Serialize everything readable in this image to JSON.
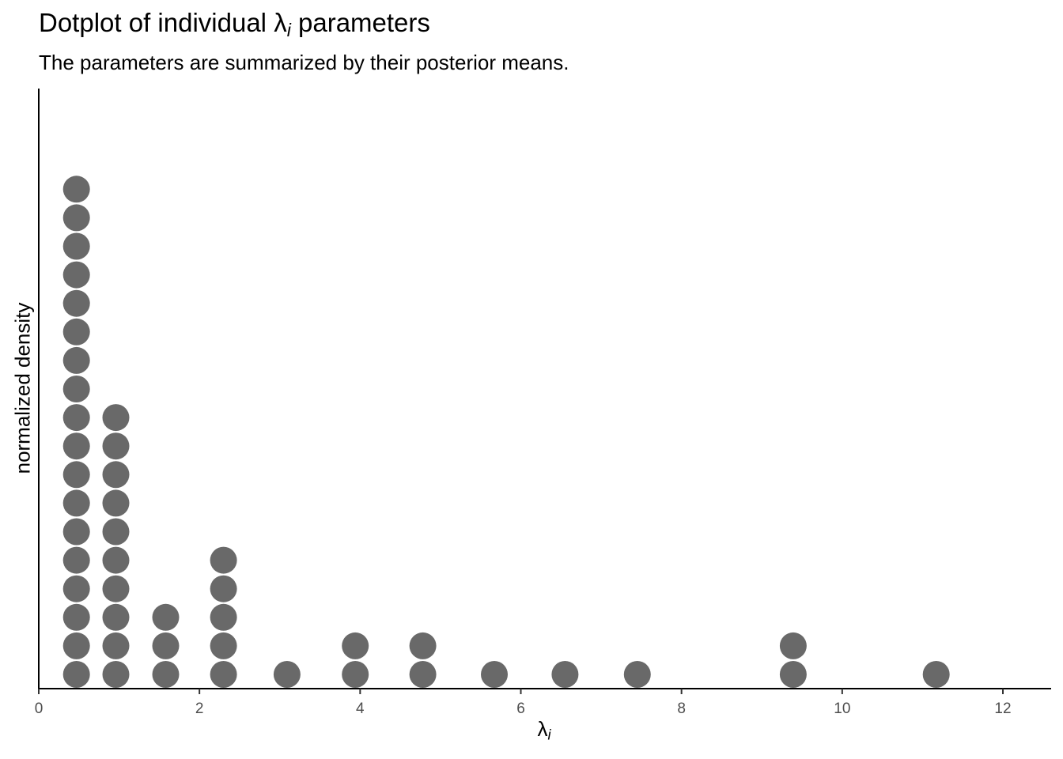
{
  "chart_data": {
    "type": "dotplot",
    "title_prefix": "Dotplot of individual ",
    "title_suffix": " parameters",
    "subtitle": "The parameters are summarized by their posterior means.",
    "symbol": "λ",
    "subscript": "i",
    "ylabel": "normalized density",
    "xlim": [
      0,
      12.6
    ],
    "x_ticks": [
      0,
      2,
      4,
      6,
      8,
      10,
      12
    ],
    "x_tick_labels": [
      "0",
      "2",
      "4",
      "6",
      "8",
      "10",
      "12"
    ],
    "dot_color": "#696969",
    "stacks": [
      {
        "x": 0.47,
        "count": 18
      },
      {
        "x": 0.96,
        "count": 10
      },
      {
        "x": 1.58,
        "count": 3
      },
      {
        "x": 2.3,
        "count": 5
      },
      {
        "x": 3.09,
        "count": 1
      },
      {
        "x": 3.94,
        "count": 2
      },
      {
        "x": 4.78,
        "count": 2
      },
      {
        "x": 5.67,
        "count": 1
      },
      {
        "x": 6.55,
        "count": 1
      },
      {
        "x": 7.45,
        "count": 1
      },
      {
        "x": 9.39,
        "count": 2
      },
      {
        "x": 11.17,
        "count": 1
      }
    ]
  }
}
